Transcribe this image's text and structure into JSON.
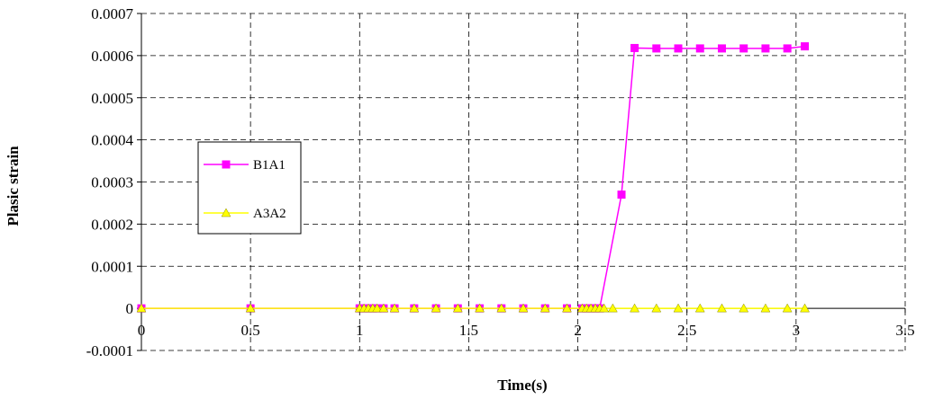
{
  "chart_data": {
    "type": "line",
    "title": "",
    "xlabel": "Time(s)",
    "ylabel": "Plasic strain",
    "xlim": [
      0,
      3.5
    ],
    "ylim": [
      -0.0001,
      0.0007
    ],
    "x_ticks": [
      0,
      0.5,
      1,
      1.5,
      2,
      2.5,
      3,
      3.5
    ],
    "x_tick_labels": [
      "0",
      "0.5",
      "1",
      "1.5",
      "2",
      "2.5",
      "3",
      "3.5"
    ],
    "y_ticks": [
      -0.0001,
      0,
      0.0001,
      0.0002,
      0.0003,
      0.0004,
      0.0005,
      0.0006,
      0.0007
    ],
    "y_tick_labels": [
      "-0.0001",
      "0",
      "0.0001",
      "0.0002",
      "0.0003",
      "0.0004",
      "0.0005",
      "0.0006",
      "0.0007"
    ],
    "grid": true,
    "legend_position": "left",
    "series": [
      {
        "name": "B1A1",
        "color": "#ff00ff",
        "marker": "square",
        "x": [
          0,
          0.5,
          1,
          1.02,
          1.04,
          1.06,
          1.08,
          1.11,
          1.16,
          1.25,
          1.35,
          1.45,
          1.55,
          1.65,
          1.75,
          1.85,
          1.95,
          2.02,
          2.04,
          2.06,
          2.08,
          2.1,
          2.2,
          2.26,
          2.36,
          2.46,
          2.56,
          2.66,
          2.76,
          2.86,
          2.96,
          3.04
        ],
        "y": [
          0,
          0,
          0,
          0,
          0,
          0,
          0,
          0,
          0,
          0,
          0,
          0,
          0,
          0,
          0,
          0,
          0,
          0,
          0,
          0,
          0,
          0,
          0.00027,
          0.000618,
          0.000617,
          0.000617,
          0.000617,
          0.000617,
          0.000617,
          0.000617,
          0.000617,
          0.000622
        ]
      },
      {
        "name": "A3A2",
        "color": "#ffff00",
        "marker": "triangle",
        "x": [
          0,
          0.5,
          1,
          1.02,
          1.04,
          1.06,
          1.08,
          1.11,
          1.16,
          1.25,
          1.35,
          1.45,
          1.55,
          1.65,
          1.75,
          1.85,
          1.95,
          2.02,
          2.04,
          2.06,
          2.08,
          2.1,
          2.12,
          2.16,
          2.26,
          2.36,
          2.46,
          2.56,
          2.66,
          2.76,
          2.86,
          2.96,
          3.04
        ],
        "y": [
          0,
          0,
          0,
          0,
          0,
          0,
          0,
          0,
          0,
          0,
          0,
          0,
          0,
          0,
          0,
          0,
          0,
          0,
          0,
          0,
          0,
          0,
          0,
          0,
          0,
          0,
          0,
          0,
          0,
          0,
          0,
          0,
          0
        ]
      }
    ]
  }
}
